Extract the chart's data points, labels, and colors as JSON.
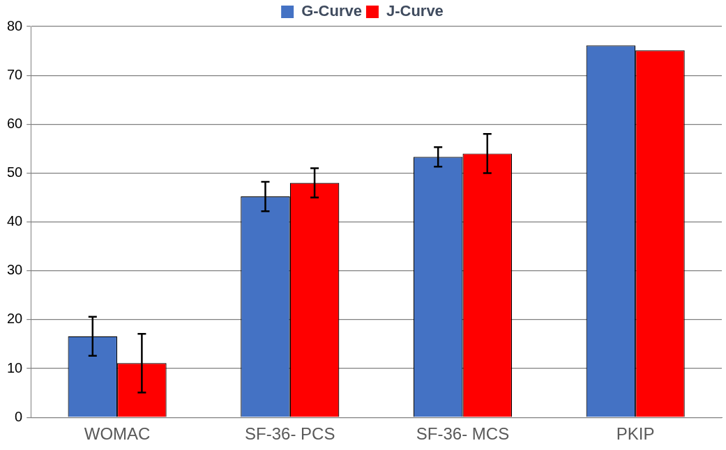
{
  "chart_data": {
    "type": "bar",
    "categories": [
      "WOMAC",
      "SF-36- PCS",
      "SF-36- MCS",
      "PKIP"
    ],
    "series": [
      {
        "name": "G-Curve",
        "color": "#4472c4",
        "values": [
          16.6,
          45.2,
          53.3,
          76.1
        ],
        "errors": [
          4,
          3,
          2,
          null
        ]
      },
      {
        "name": "J-Curve",
        "color": "#ff0000",
        "values": [
          11.1,
          48,
          54,
          75.1
        ],
        "errors": [
          6,
          3,
          4,
          null
        ]
      }
    ],
    "ylim": [
      0,
      80
    ],
    "yticks": [
      0,
      10,
      20,
      30,
      40,
      50,
      60,
      70,
      80
    ],
    "grid": "y",
    "legend": "top"
  }
}
